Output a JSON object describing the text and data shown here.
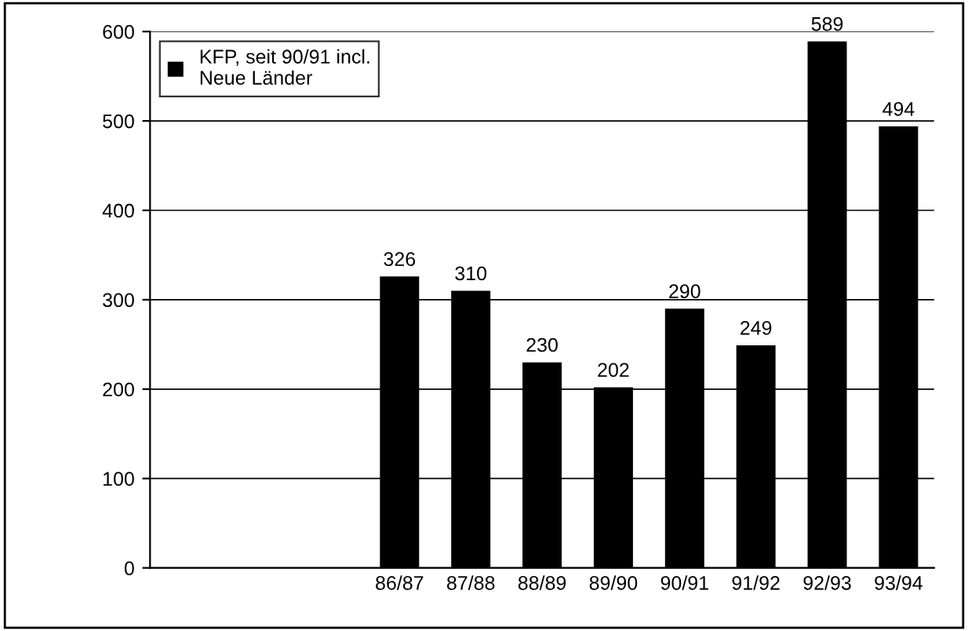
{
  "chart_data": {
    "type": "bar",
    "categories": [
      null,
      null,
      null,
      "86/87",
      "87/88",
      "88/89",
      "89/90",
      "90/91",
      "91/92",
      "92/93",
      "93/94"
    ],
    "series": [
      {
        "name": "KFP, seit 90/91 incl.\nNeue Länder",
        "color": "#000000",
        "values": [
          null,
          null,
          null,
          326,
          310,
          230,
          202,
          290,
          249,
          589,
          494
        ]
      }
    ],
    "ylim": [
      0,
      600
    ],
    "yticks": [
      0,
      100,
      200,
      300,
      400,
      500,
      600
    ],
    "grid": "y",
    "legend": "top left",
    "data_labels": true
  }
}
